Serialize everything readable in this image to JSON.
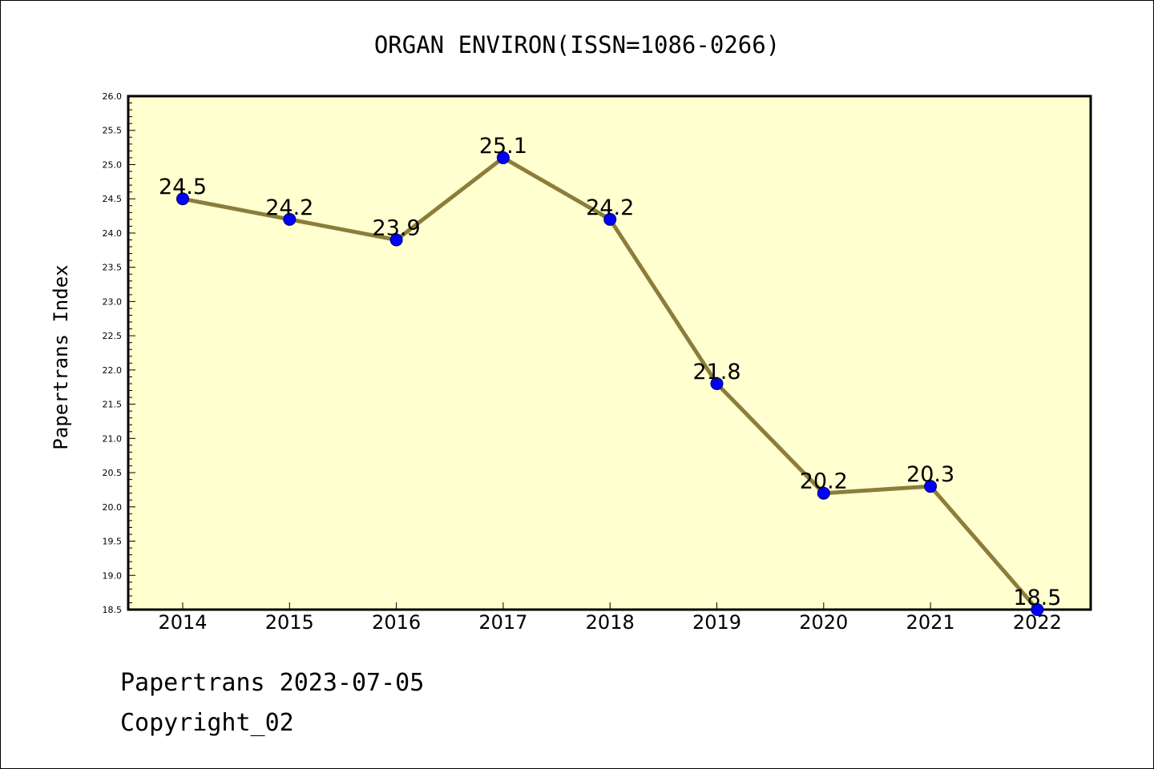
{
  "chart_data": {
    "type": "line",
    "title": "ORGAN ENVIRON(ISSN=1086-0266)",
    "xlabel": "",
    "ylabel": "Papertrans Index",
    "categories": [
      "2014",
      "2015",
      "2016",
      "2017",
      "2018",
      "2019",
      "2020",
      "2021",
      "2022"
    ],
    "values": [
      24.5,
      24.2,
      23.9,
      25.1,
      24.2,
      21.8,
      20.2,
      20.3,
      18.5
    ],
    "data_labels": [
      "24.5",
      "24.2",
      "23.9",
      "25.1",
      "24.2",
      "21.8",
      "20.2",
      "20.3",
      "18.5"
    ],
    "ylim": [
      18.5,
      26.0
    ],
    "yticks": [
      "18.5",
      "19.0",
      "19.5",
      "20.0",
      "20.5",
      "21.0",
      "21.5",
      "22.0",
      "22.5",
      "23.0",
      "23.5",
      "24.0",
      "24.5",
      "25.0",
      "25.5",
      "26.0"
    ],
    "grid": false,
    "legend": "none",
    "colors": {
      "plot_background": "#ffffd0",
      "line": "#8b7d3a",
      "marker": "#0000ff"
    }
  },
  "footer": {
    "line1": "Papertrans 2023-07-05",
    "line2": "Copyright_02"
  }
}
